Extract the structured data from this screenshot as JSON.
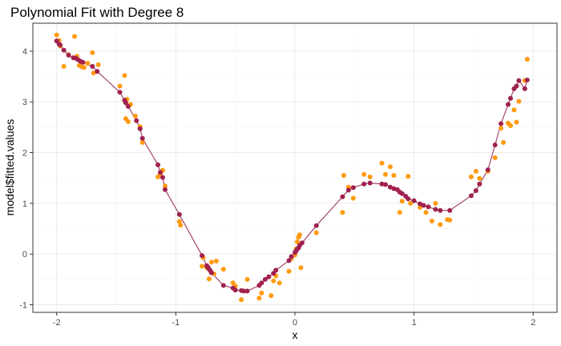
{
  "chart_data": {
    "type": "scatter",
    "title": "Polynomial Fit with Degree 8",
    "xlabel": "x",
    "ylabel": "model$fitted.values",
    "xlim": [
      -2.2,
      2.2
    ],
    "ylim": [
      -1.15,
      4.55
    ],
    "xticks": [
      -2,
      -1,
      0,
      1,
      2
    ],
    "xtick_labels": [
      "-2",
      "-1",
      "0",
      "1",
      "2"
    ],
    "yticks": [
      -1,
      0,
      1,
      2,
      3,
      4
    ],
    "ytick_labels": [
      "-1",
      "0",
      "1",
      "2",
      "3",
      "4"
    ],
    "grid": true,
    "legend": "none",
    "colors": {
      "observed": "#ff9a0e",
      "fitted": "#a0214f",
      "line": "#a4466e",
      "panel_border": "#333333",
      "grid": "#ebebeb"
    },
    "observed": {
      "x": [
        -2.0,
        -1.98,
        -1.97,
        -1.94,
        -1.9,
        -1.85,
        -1.83,
        -1.81,
        -1.79,
        -1.77,
        -1.74,
        -1.7,
        -1.69,
        -1.65,
        -1.47,
        -1.43,
        -1.42,
        -1.41,
        -1.4,
        -1.38,
        -1.34,
        -1.3,
        -1.28,
        -1.15,
        -1.13,
        -1.11,
        -1.09,
        -0.97,
        -0.96,
        -0.78,
        -0.77,
        -0.74,
        -0.72,
        -0.7,
        -0.68,
        -0.66,
        -0.6,
        -0.52,
        -0.5,
        -0.45,
        -0.43,
        -0.4,
        -0.3,
        -0.28,
        -0.2,
        -0.18,
        -0.16,
        -0.13,
        -0.05,
        -0.03,
        0.0,
        0.01,
        0.02,
        0.03,
        0.04,
        0.05,
        0.18,
        0.4,
        0.41,
        0.45,
        0.49,
        0.58,
        0.63,
        0.73,
        0.76,
        0.8,
        0.83,
        0.88,
        0.9,
        0.95,
        0.97,
        1.05,
        1.1,
        1.15,
        1.18,
        1.22,
        1.28,
        1.3,
        1.48,
        1.52,
        1.55,
        1.62,
        1.68,
        1.73,
        1.75,
        1.79,
        1.81,
        1.84,
        1.86,
        1.88,
        1.93,
        1.95
      ],
      "y": [
        4.32,
        4.21,
        4.1,
        3.7,
        3.93,
        4.29,
        3.9,
        3.72,
        3.69,
        3.68,
        3.76,
        3.97,
        3.57,
        3.73,
        3.31,
        3.52,
        2.67,
        3.05,
        2.61,
        2.95,
        2.72,
        2.51,
        2.2,
        1.52,
        1.58,
        1.65,
        1.34,
        0.64,
        0.57,
        -0.24,
        -0.07,
        -0.27,
        -0.49,
        -0.16,
        -0.39,
        -0.14,
        -0.3,
        -0.57,
        -0.63,
        -0.9,
        -0.73,
        -0.5,
        -0.87,
        -0.77,
        -0.82,
        -0.53,
        -0.43,
        -0.57,
        -0.34,
        -0.09,
        -0.02,
        0.1,
        0.24,
        0.33,
        0.38,
        -0.27,
        0.42,
        0.82,
        1.55,
        1.32,
        1.1,
        1.57,
        1.52,
        1.79,
        1.57,
        1.72,
        1.55,
        0.82,
        1.04,
        1.53,
        1.0,
        0.92,
        0.82,
        0.65,
        1.0,
        0.58,
        0.68,
        0.67,
        1.52,
        1.63,
        1.49,
        1.63,
        1.9,
        2.48,
        2.2,
        2.58,
        2.53,
        2.84,
        2.6,
        3.01,
        3.42,
        3.84
      ]
    },
    "fitted": {
      "x": [
        -2.0,
        -1.98,
        -1.97,
        -1.94,
        -1.9,
        -1.86,
        -1.84,
        -1.82,
        -1.8,
        -1.78,
        -1.7,
        -1.66,
        -1.47,
        -1.43,
        -1.42,
        -1.4,
        -1.33,
        -1.3,
        -1.28,
        -1.15,
        -1.13,
        -1.11,
        -1.09,
        -0.97,
        -0.78,
        -0.74,
        -0.73,
        -0.72,
        -0.71,
        -0.7,
        -0.6,
        -0.52,
        -0.5,
        -0.45,
        -0.43,
        -0.4,
        -0.3,
        -0.28,
        -0.25,
        -0.22,
        -0.18,
        -0.16,
        -0.05,
        -0.03,
        0.0,
        0.01,
        0.02,
        0.03,
        0.04,
        0.06,
        0.18,
        0.4,
        0.45,
        0.49,
        0.58,
        0.63,
        0.73,
        0.76,
        0.8,
        0.83,
        0.86,
        0.88,
        0.9,
        0.93,
        0.95,
        1.0,
        1.05,
        1.08,
        1.12,
        1.18,
        1.22,
        1.3,
        1.48,
        1.52,
        1.55,
        1.62,
        1.68,
        1.73,
        1.79,
        1.81,
        1.84,
        1.86,
        1.88,
        1.93,
        1.95
      ],
      "y": [
        4.2,
        4.14,
        4.12,
        4.02,
        3.92,
        3.87,
        3.86,
        3.83,
        3.8,
        3.78,
        3.7,
        3.6,
        3.19,
        3.03,
        2.98,
        2.91,
        2.63,
        2.47,
        2.28,
        1.76,
        1.61,
        1.51,
        1.27,
        0.78,
        -0.03,
        -0.23,
        -0.26,
        -0.3,
        -0.33,
        -0.37,
        -0.62,
        -0.67,
        -0.71,
        -0.72,
        -0.73,
        -0.73,
        -0.62,
        -0.57,
        -0.5,
        -0.45,
        -0.38,
        -0.32,
        -0.13,
        -0.05,
        0.03,
        0.06,
        0.1,
        0.12,
        0.17,
        0.22,
        0.56,
        1.13,
        1.26,
        1.31,
        1.38,
        1.4,
        1.38,
        1.37,
        1.32,
        1.29,
        1.27,
        1.22,
        1.19,
        1.14,
        1.09,
        1.05,
        0.99,
        0.96,
        0.93,
        0.88,
        0.86,
        0.86,
        1.15,
        1.25,
        1.38,
        1.66,
        2.15,
        2.57,
        2.95,
        3.07,
        3.26,
        3.31,
        3.42,
        3.26,
        3.43
      ]
    }
  }
}
